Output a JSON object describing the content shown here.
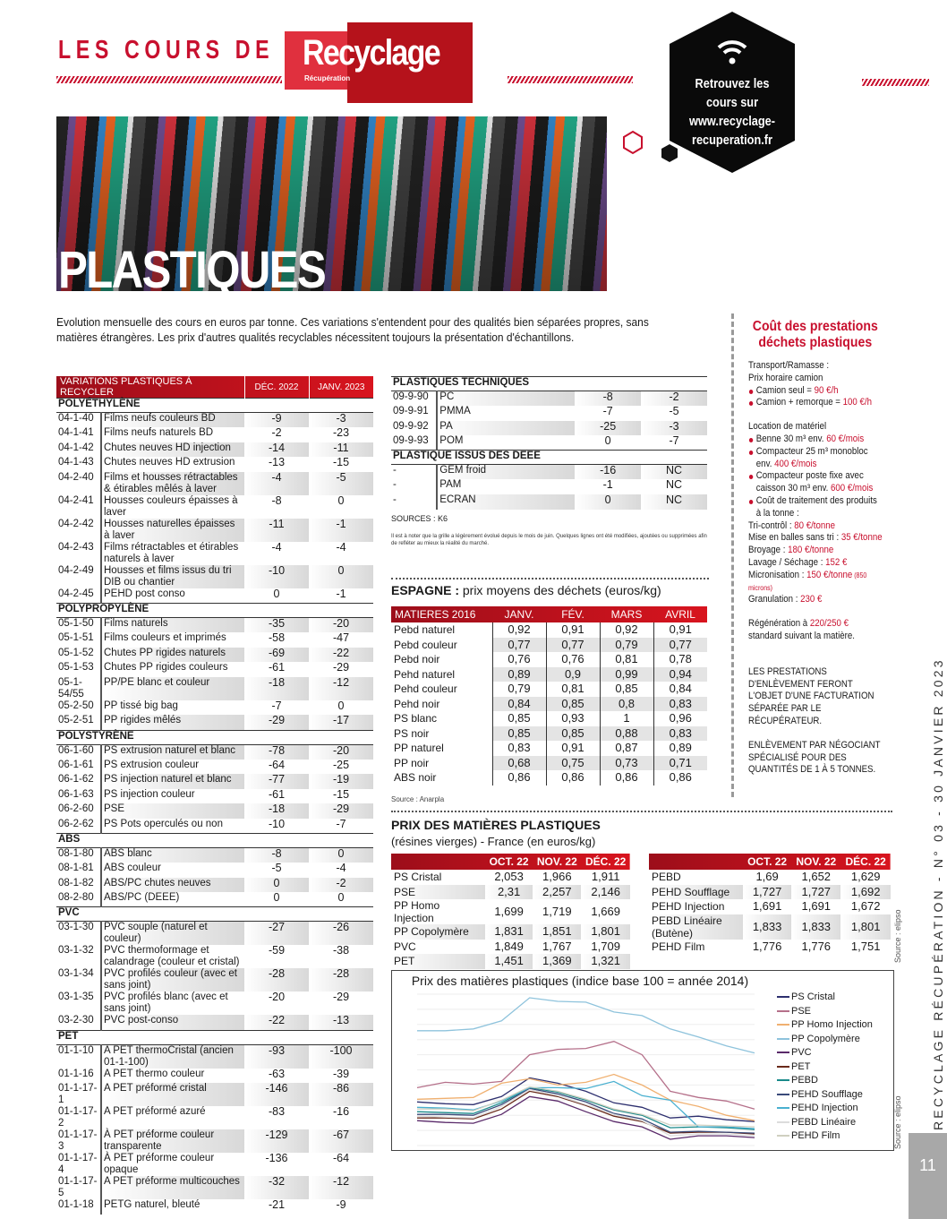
{
  "header": {
    "title_prefix": "LES COURS DE",
    "logo_main": "Recyclage",
    "logo_sub": "Récupération",
    "promo": "Retrouvez les cours sur www.recyclage-recuperation.fr",
    "promo_icon": "wifi-icon"
  },
  "hero": {
    "title": "PLASTIQUES"
  },
  "intro": "Evolution mensuelle des cours en euros par tonne. Ces variations s'entendent pour des qualités bien séparées propres, sans matières étrangères. Les prix d'autres qualités recyclables nécessitent toujours la présentation d'échantillons.",
  "variations": {
    "headers": [
      "VARIATIONS PLASTIQUES À RECYCLER",
      "DÉC. 2022",
      "JANV. 2023"
    ],
    "groups": [
      {
        "name": "POLYÉTHYLÈNE",
        "rows": [
          [
            "04-1-40",
            "Films neufs couleurs BD",
            "-9",
            "-3"
          ],
          [
            "04-1-41",
            "Films neufs naturels BD",
            "-2",
            "-23"
          ],
          [
            "04-1-42",
            "Chutes neuves HD injection",
            "-14",
            "-11"
          ],
          [
            "04-1-43",
            "Chutes neuves HD extrusion",
            "-13",
            "-15"
          ],
          [
            "04-2-40",
            "Films et housses rétractables & étirables mêlés à laver",
            "-4",
            "-5"
          ],
          [
            "04-2-41",
            "Housses couleurs épaisses à laver",
            "-8",
            "0"
          ],
          [
            "04-2-42",
            "Housses naturelles épaisses à laver",
            "-11",
            "-1"
          ],
          [
            "04-2-43",
            "Films rétractables et étirables naturels à laver",
            "-4",
            "-4"
          ],
          [
            "04-2-49",
            "Housses et films issus du tri DIB ou chantier",
            "-10",
            "0"
          ],
          [
            "04-2-45",
            "PEHD post conso",
            "0",
            "-1"
          ]
        ]
      },
      {
        "name": "POLYPROPYLÈNE",
        "rows": [
          [
            "05-1-50",
            "Films naturels",
            "-35",
            "-20"
          ],
          [
            "05-1-51",
            "Films couleurs et imprimés",
            "-58",
            "-47"
          ],
          [
            "05-1-52",
            "Chutes PP rigides naturels",
            "-69",
            "-22"
          ],
          [
            "05-1-53",
            "Chutes PP rigides couleurs",
            "-61",
            "-29"
          ],
          [
            "05-1-54/55",
            "PP/PE blanc et couleur",
            "-18",
            "-12"
          ],
          [
            "05-2-50",
            "PP tissé big bag",
            "-7",
            "0"
          ],
          [
            "05-2-51",
            "PP rigides mêlés",
            "-29",
            "-17"
          ]
        ]
      },
      {
        "name": "POLYSTYRÈNE",
        "rows": [
          [
            "06-1-60",
            "PS extrusion naturel et blanc",
            "-78",
            "-20"
          ],
          [
            "06-1-61",
            "PS extrusion couleur",
            "-64",
            "-25"
          ],
          [
            "06-1-62",
            "PS injection naturel et blanc",
            "-77",
            "-19"
          ],
          [
            "06-1-63",
            "PS injection couleur",
            "-61",
            "-15"
          ],
          [
            "06-2-60",
            "PSE",
            "-18",
            "-29"
          ],
          [
            "06-2-62",
            "PS Pots operculés ou non",
            "-10",
            "-7"
          ]
        ]
      },
      {
        "name": "ABS",
        "rows": [
          [
            "08-1-80",
            "ABS blanc",
            "-8",
            "0"
          ],
          [
            "08-1-81",
            "ABS couleur",
            "-5",
            "-4"
          ],
          [
            "08-1-82",
            "ABS/PC chutes neuves",
            "0",
            "-2"
          ],
          [
            "08-2-80",
            "ABS/PC (DEEE)",
            "0",
            "0"
          ]
        ]
      },
      {
        "name": "PVC",
        "rows": [
          [
            "03-1-30",
            "PVC souple (naturel et couleur)",
            "-27",
            "-26"
          ],
          [
            "03-1-32",
            "PVC thermoformage et calandrage (couleur et cristal)",
            "-59",
            "-38"
          ],
          [
            "03-1-34",
            "PVC profilés couleur (avec et sans joint)",
            "-28",
            "-28"
          ],
          [
            "03-1-35",
            "PVC profilés blanc (avec et sans joint)",
            "-20",
            "-29"
          ],
          [
            "03-2-30",
            "PVC post-conso",
            "-22",
            "-13"
          ]
        ]
      },
      {
        "name": "PET",
        "rows": [
          [
            "01-1-10",
            "A PET thermoCristal (ancien 01-1-100)",
            "-93",
            "-100"
          ],
          [
            "01-1-16",
            "A PET thermo couleur",
            "-63",
            "-39"
          ],
          [
            "01-1-17-1",
            "A PET préformé cristal",
            "-146",
            "-86"
          ],
          [
            "01-1-17-2",
            "A PET préformé azuré",
            "-83",
            "-16"
          ],
          [
            "01-1-17-3",
            "À PET préforme couleur transparente",
            "-129",
            "-67"
          ],
          [
            "01-1-17-4",
            "À PET préforme couleur opaque",
            "-136",
            "-64"
          ],
          [
            "01-1-17-5",
            "A PET préforme multicouches",
            "-32",
            "-12"
          ],
          [
            "01-1-18",
            "PETG naturel, bleuté",
            "-21",
            "-9"
          ]
        ]
      }
    ]
  },
  "technical": {
    "groups": [
      {
        "name": "PLASTIQUES TECHNIQUES",
        "rows": [
          [
            "09-9-90",
            "PC",
            "-8",
            "-2"
          ],
          [
            "09-9-91",
            "PMMA",
            "-7",
            "-5"
          ],
          [
            "09-9-92",
            "PA",
            "-25",
            "-3"
          ],
          [
            "09-9-93",
            "POM",
            "0",
            "-7"
          ]
        ]
      },
      {
        "name": "PLASTIQUE ISSUS DES DEEE",
        "rows": [
          [
            "-",
            "GEM froid",
            "-16",
            "NC"
          ],
          [
            "-",
            "PAM",
            "-1",
            "NC"
          ],
          [
            "-",
            "ECRAN",
            "0",
            "NC"
          ]
        ]
      }
    ],
    "sources": "SOURCES : K6",
    "note": "Il est à noter que la grille a légèrement évolué depuis le mois de juin. Quelques lignes ont été modifiées, ajoutées ou supprimées afin de refléter au mieux la réalité du marché."
  },
  "spain": {
    "title_bold": "ESPAGNE :",
    "title_rest": " prix moyens des déchets (euros/kg)",
    "headers": [
      "MATIERES 2016",
      "JANV.",
      "FÉV.",
      "MARS",
      "AVRIL"
    ],
    "rows": [
      [
        "Pebd naturel",
        "0,92",
        "0,91",
        "0,92",
        "0,91"
      ],
      [
        "Pebd couleur",
        "0,77",
        "0,77",
        "0,79",
        "0,77"
      ],
      [
        "Pebd noir",
        "0,76",
        "0,76",
        "0,81",
        "0,78"
      ],
      [
        "Pehd naturel",
        "0,89",
        "0,9",
        "0,99",
        "0,94"
      ],
      [
        "Pehd couleur",
        "0,79",
        "0,81",
        "0,85",
        "0,84"
      ],
      [
        "Pehd noir",
        "0,84",
        "0,85",
        "0,8",
        "0,83"
      ],
      [
        "PS blanc",
        "0,85",
        "0,93",
        "1",
        "0,96"
      ],
      [
        "PS noir",
        "0,85",
        "0,85",
        "0,88",
        "0,83"
      ],
      [
        "PP naturel",
        "0,83",
        "0,91",
        "0,87",
        "0,89"
      ],
      [
        "PP noir",
        "0,68",
        "0,75",
        "0,73",
        "0,71"
      ],
      [
        "ABS noir",
        "0,86",
        "0,86",
        "0,86",
        "0,86"
      ]
    ],
    "source": "Source : Anarpla"
  },
  "virgin": {
    "title": "PRIX DES MATIÈRES PLASTIQUES",
    "subtitle": "(résines vierges) - France (en euros/kg)",
    "headers": [
      "",
      "OCT. 22",
      "NOV. 22",
      "DÉC. 22"
    ],
    "left": [
      [
        "PS Cristal",
        "2,053",
        "1,966",
        "1,911"
      ],
      [
        "PSE",
        "2,31",
        "2,257",
        "2,146"
      ],
      [
        "PP Homo Injection",
        "1,699",
        "1,719",
        "1,669"
      ],
      [
        "PP Copolymère",
        "1,831",
        "1,851",
        "1,801"
      ],
      [
        "PVC",
        "1,849",
        "1,767",
        "1,709"
      ],
      [
        "PET",
        "1,451",
        "1,369",
        "1,321"
      ]
    ],
    "right": [
      [
        "PEBD",
        "1,69",
        "1,652",
        "1,629"
      ],
      [
        "PEHD Soufflage",
        "1,727",
        "1,727",
        "1,692"
      ],
      [
        "PEHD Injection",
        "1,691",
        "1,691",
        "1,672"
      ],
      [
        "PEBD Linéaire (Butène)",
        "1,833",
        "1,833",
        "1,801"
      ],
      [
        "PEHD Film",
        "1,776",
        "1,776",
        "1,751"
      ]
    ],
    "source": "Source : elipso"
  },
  "chart_data": {
    "type": "line",
    "title": "Prix des matières plastiques (indice base 100 = année 2014)",
    "legend_placement": "right",
    "grid": true,
    "source": "Source : elipso",
    "series": [
      {
        "name": "PS Cristal",
        "color": "#2d2f6e",
        "values": [
          149,
          147,
          146,
          155,
          176,
          170,
          161,
          148,
          143,
          131,
          133,
          129,
          127
        ]
      },
      {
        "name": "PSE",
        "color": "#b5708a",
        "values": [
          165,
          171,
          169,
          172,
          202,
          208,
          209,
          217,
          202,
          161,
          154,
          150,
          141
        ]
      },
      {
        "name": "PP Homo Injection",
        "color": "#f0b070",
        "values": [
          152,
          153,
          154,
          170,
          175,
          168,
          171,
          180,
          168,
          151,
          144,
          134,
          128
        ]
      },
      {
        "name": "PP Copolymère",
        "color": "#8ec3dc",
        "values": [
          229,
          229,
          231,
          240,
          266,
          262,
          261,
          250,
          246,
          231,
          222,
          212,
          204
        ]
      },
      {
        "name": "PVC",
        "color": "#5a2a6a",
        "values": [
          128,
          126,
          125,
          135,
          155,
          150,
          138,
          127,
          121,
          107,
          111,
          111,
          109
        ]
      },
      {
        "name": "PET",
        "color": "#6a2a1a",
        "values": [
          131,
          131,
          130,
          141,
          161,
          155,
          145,
          133,
          127,
          114,
          115,
          115,
          113
        ]
      },
      {
        "name": "PEBD",
        "color": "#1a8a8a",
        "values": [
          138,
          137,
          136,
          148,
          165,
          160,
          151,
          140,
          134,
          120,
          121,
          120,
          118
        ]
      },
      {
        "name": "PEHD Soufflage",
        "color": "#3a4a7a",
        "values": [
          135,
          135,
          134,
          146,
          164,
          158,
          149,
          136,
          130,
          115,
          116,
          115,
          114
        ]
      },
      {
        "name": "PEHD Injection",
        "color": "#4ab0d0",
        "values": [
          143,
          142,
          140,
          150,
          165,
          165,
          164,
          172,
          156,
          151,
          121,
          121,
          119
        ]
      },
      {
        "name": "PEBD Linéaire",
        "color": "#dcdcdc",
        "values": [
          133,
          132,
          131,
          144,
          163,
          156,
          146,
          135,
          128,
          111,
          113,
          113,
          111
        ]
      },
      {
        "name": "PEHD Film",
        "color": "#d0d0c0",
        "values": [
          141,
          141,
          139,
          151,
          166,
          161,
          152,
          141,
          135,
          123,
          123,
          122,
          121
        ]
      }
    ]
  },
  "sidebar": {
    "title": "Coût des prestations déchets plastiques",
    "transport_label": "Transport/Ramasse :",
    "hourly": "Prix horaire camion",
    "truck": [
      {
        "label": "Camion seul = ",
        "price": "90 €/h"
      },
      {
        "label": "Camion + remorque = ",
        "price": "100 €/h"
      }
    ],
    "rental_label": "Location de matériel",
    "rental": [
      {
        "label": "Benne 30 m³ env. ",
        "price": "60 €/mois"
      },
      {
        "label": "Compacteur 25 m³ monobloc env. ",
        "price": "400 €/mois"
      },
      {
        "label": "Compacteur poste fixe avec caisson 30 m³ env. ",
        "price": "600 €/mois"
      },
      {
        "label": "Coût de traitement des produits à la tonne :",
        "price": ""
      }
    ],
    "treatment": [
      {
        "label": "Tri-contrôl : ",
        "price": "80 €/tonne"
      },
      {
        "label": "Mise en balles sans tri : ",
        "price": "35 €/tonne"
      },
      {
        "label": "Broyage : ",
        "price": "180 €/tonne"
      },
      {
        "label": "Lavage / Séchage : ",
        "price": "152 €"
      },
      {
        "label": "Micronisation : ",
        "price": "150 €/tonne",
        "extra": " (850 microns)"
      },
      {
        "label": "Granulation : ",
        "price": "230 €"
      }
    ],
    "regen_a": "Régénération à ",
    "regen_price": "220/250 €",
    "regen_b": " standard suivant la matière.",
    "notice1": "LES PRESTATIONS D'ENLÈVEMENT FERONT L'OBJET D'UNE FACTURATION SÉPARÉE PAR LE RÉCUPÉRATEUR.",
    "notice2": "ENLÈVEMENT PAR NÉGOCIANT SPÉCIALISÉ POUR DES QUANTITÉS DE 1 À 5 TONNES."
  },
  "footer": {
    "running_title": "RECYCLAGE RÉCUPÉRATION - N° 03 - 30 JANVIER 2023",
    "page": "11"
  }
}
